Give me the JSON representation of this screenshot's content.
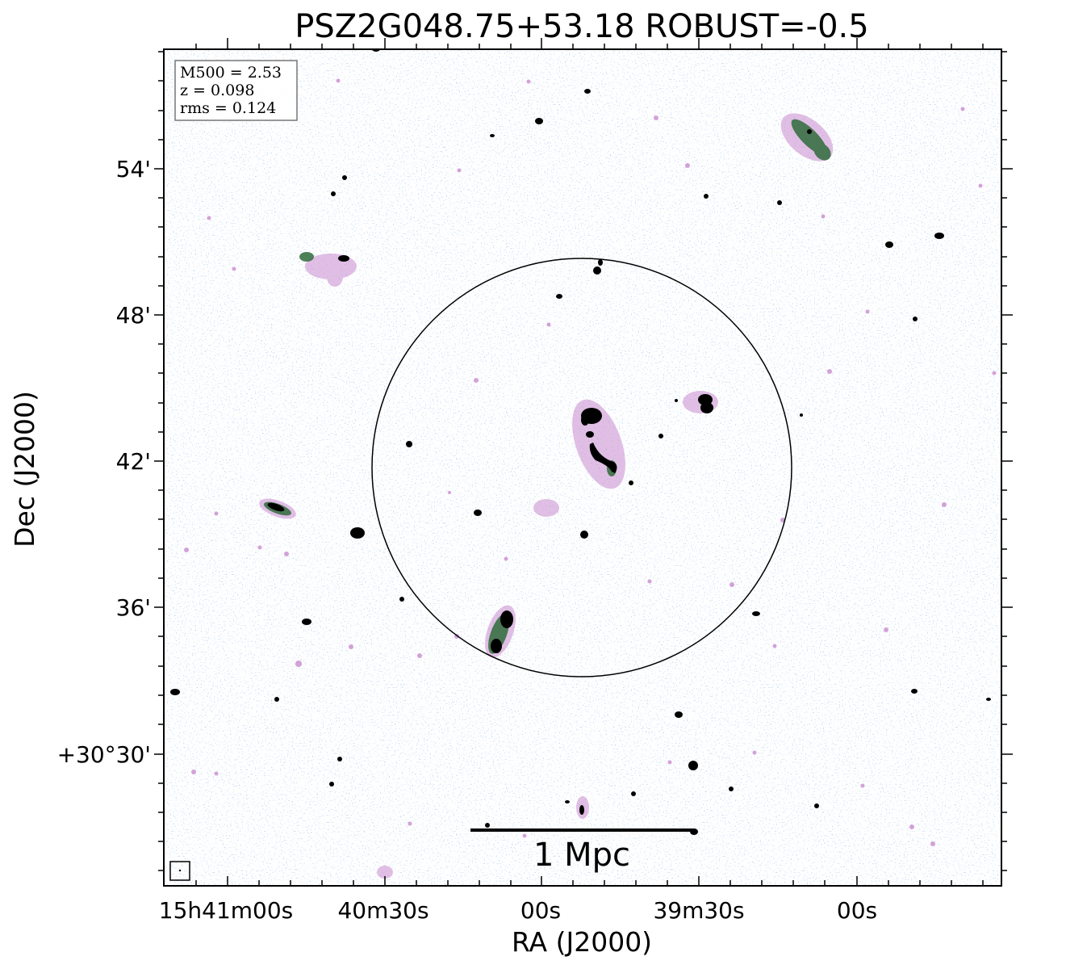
{
  "figure": {
    "title": "PSZ2G048.75+53.18 ROBUST=-0.5",
    "xlabel": "RA (J2000)",
    "ylabel": "Dec (J2000)",
    "x_ticks": [
      "15h41m00s",
      "40m30s",
      "00s",
      "39m30s",
      "00s"
    ],
    "y_ticks": [
      "54'",
      "48'",
      "42'",
      "36'",
      "+30°30'"
    ],
    "info_box": {
      "mass": "M500 = 2.53",
      "redshift": "z = 0.098",
      "rms": "rms = 0.124"
    },
    "scale_bar_label": "1 Mpc",
    "colors": {
      "noise": "#9db8dc",
      "faint_emission": "#c98bd0",
      "mid_emission": "#2f6b3a",
      "bright_emission": "#000000",
      "circle": "#000000"
    }
  }
}
